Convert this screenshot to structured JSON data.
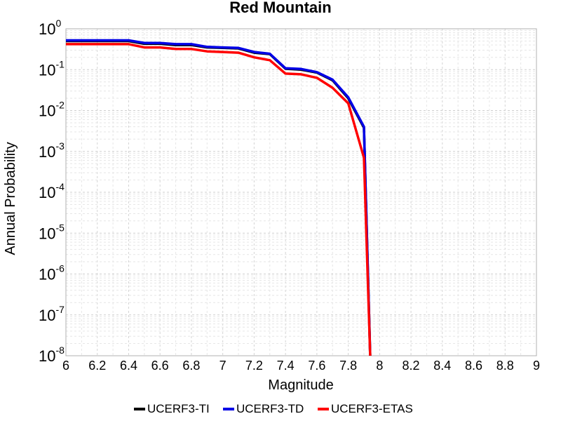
{
  "chart_data": {
    "type": "line",
    "title": "Red Mountain",
    "xlabel": "Magnitude",
    "ylabel": "Annual Probability",
    "xlim": [
      6,
      9
    ],
    "ylim": [
      1e-08,
      1
    ],
    "yscale": "log",
    "grid": true,
    "legend_placement": "bottom",
    "x_ticks": [
      "6",
      "6.2",
      "6.4",
      "6.6",
      "6.8",
      "7",
      "7.2",
      "7.4",
      "7.6",
      "7.8",
      "8",
      "8.2",
      "8.4",
      "8.6",
      "8.8",
      "9"
    ],
    "y_ticks": [
      {
        "base": "10",
        "exp": "0"
      },
      {
        "base": "10",
        "exp": "-1"
      },
      {
        "base": "10",
        "exp": "-2"
      },
      {
        "base": "10",
        "exp": "-3"
      },
      {
        "base": "10",
        "exp": "-4"
      },
      {
        "base": "10",
        "exp": "-5"
      },
      {
        "base": "10",
        "exp": "-6"
      },
      {
        "base": "10",
        "exp": "-7"
      },
      {
        "base": "10",
        "exp": "-8"
      }
    ],
    "x": [
      6.0,
      6.1,
      6.2,
      6.3,
      6.4,
      6.5,
      6.6,
      6.7,
      6.8,
      6.9,
      7.0,
      7.1,
      7.2,
      7.3,
      7.4,
      7.5,
      7.6,
      7.7,
      7.8,
      7.9,
      7.94
    ],
    "series": [
      {
        "name": "UCERF3-TI",
        "color": "#000000",
        "values": [
          0.5,
          0.5,
          0.5,
          0.5,
          0.5,
          0.43,
          0.43,
          0.4,
          0.4,
          0.35,
          0.34,
          0.33,
          0.26,
          0.24,
          0.105,
          0.1,
          0.085,
          0.055,
          0.02,
          0.0038,
          1e-08
        ]
      },
      {
        "name": "UCERF3-TD",
        "color": "#0000e6",
        "values": [
          0.52,
          0.52,
          0.52,
          0.52,
          0.52,
          0.45,
          0.45,
          0.42,
          0.42,
          0.36,
          0.35,
          0.34,
          0.27,
          0.245,
          0.108,
          0.104,
          0.087,
          0.057,
          0.021,
          0.004,
          1e-08
        ]
      },
      {
        "name": "UCERF3-ETAS",
        "color": "#ff0000",
        "values": [
          0.42,
          0.42,
          0.42,
          0.42,
          0.42,
          0.35,
          0.35,
          0.32,
          0.32,
          0.28,
          0.27,
          0.26,
          0.2,
          0.17,
          0.08,
          0.077,
          0.063,
          0.036,
          0.015,
          0.0007,
          1e-08
        ]
      }
    ]
  }
}
